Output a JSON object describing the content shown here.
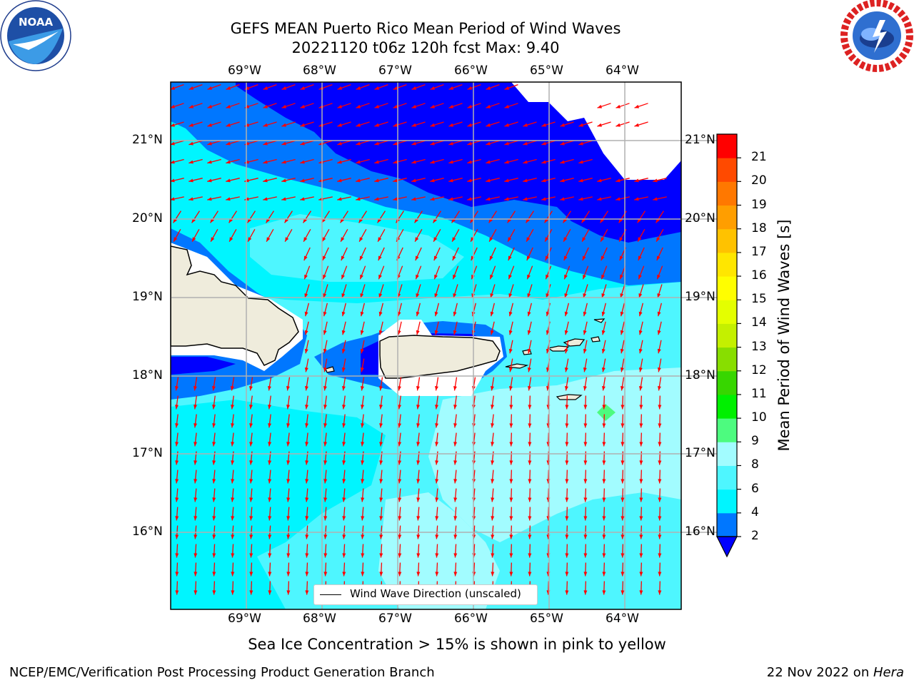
{
  "title": {
    "line1": "GEFS MEAN Puerto Rico Mean Period of Wind Waves",
    "line2": "20221120 t06z 120h fcst   Max: 9.40"
  },
  "map": {
    "lon_ticks": [
      "69°W",
      "68°W",
      "67°W",
      "66°W",
      "65°W",
      "64°W"
    ],
    "lat_ticks": [
      "21°N",
      "20°N",
      "19°N",
      "18°N",
      "17°N",
      "16°N"
    ],
    "extent": {
      "lon_min": -70.0,
      "lon_max": -63.3,
      "lat_min": 15.0,
      "lat_max": 21.75
    },
    "land_color": "#efecdc",
    "arrow_color": "#ff0000",
    "regions": [
      "Hispaniola (east)",
      "Puerto Rico",
      "Virgin Islands",
      "St. Croix"
    ]
  },
  "colorbar": {
    "label": "Mean Period of Wind Waves [s]",
    "ticks": [
      "2",
      "4",
      "6",
      "8",
      "9",
      "10",
      "11",
      "12",
      "13",
      "14",
      "15",
      "16",
      "17",
      "18",
      "19",
      "20",
      "21"
    ],
    "colors": [
      "#0077ff",
      "#00f5ff",
      "#4ef6ff",
      "#a2fcff",
      "#4dfb7f",
      "#00f000",
      "#37d600",
      "#88de00",
      "#c4f000",
      "#e4ff00",
      "#fffe00",
      "#ffe600",
      "#ffc200",
      "#ff9e00",
      "#ff7800",
      "#ff4a00",
      "#ff0000"
    ],
    "extend_min_color": "#0000ff"
  },
  "legend": {
    "label": "Wind Wave Direction (unscaled)"
  },
  "note": "Sea Ice Concentration > 15% is shown in pink to yellow",
  "footer": {
    "left": "NCEP/EMC/Verification Post Processing Product Generation Branch",
    "right_date": "22 Nov 2022 on ",
    "right_machine": "Hera"
  },
  "logos": {
    "noaa": "NOAA",
    "nws": "NATIONAL WEATHER SERVICE"
  }
}
